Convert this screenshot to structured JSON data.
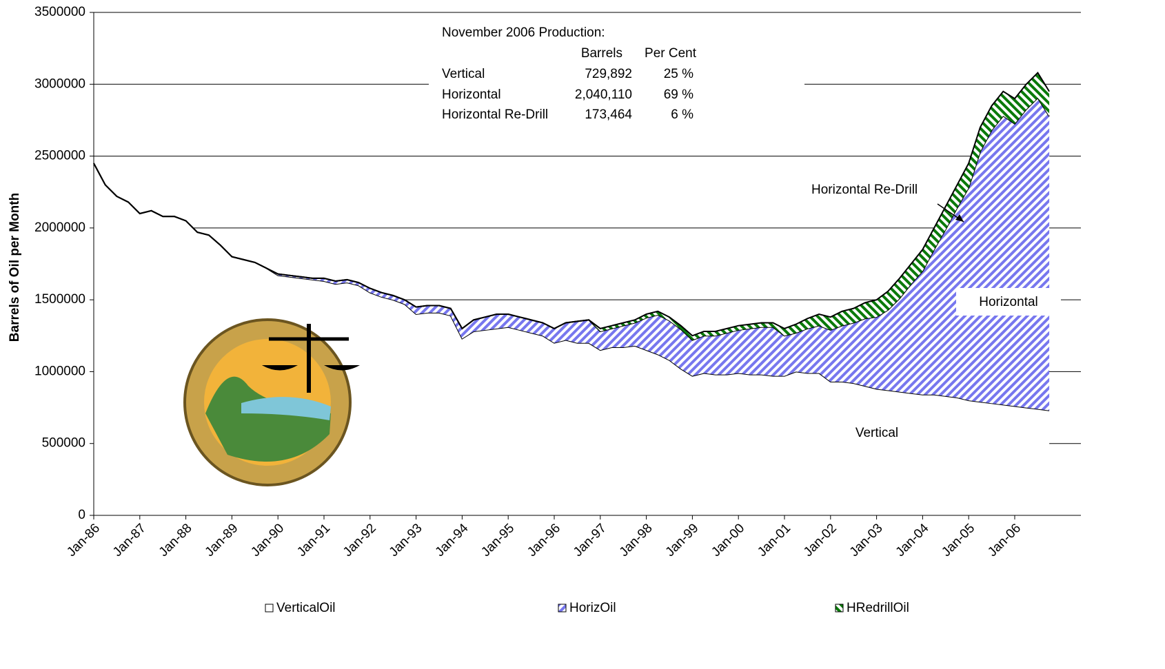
{
  "chart_data": {
    "type": "stacked_area",
    "y_label": "Barrels of Oil per Month",
    "ylim": [
      0,
      3500000
    ],
    "yticks": [
      0,
      500000,
      1000000,
      1500000,
      2000000,
      2500000,
      3000000,
      3500000
    ],
    "grid": true,
    "legend": "bottom",
    "categories": [
      "Jan-86",
      null,
      null,
      null,
      "Jan-87",
      null,
      null,
      null,
      "Jan-88",
      null,
      null,
      null,
      "Jan-89",
      null,
      null,
      null,
      "Jan-90",
      null,
      null,
      null,
      "Jan-91",
      null,
      null,
      null,
      "Jan-92",
      null,
      null,
      null,
      "Jan-93",
      null,
      null,
      null,
      "Jan-94",
      null,
      null,
      null,
      "Jan-95",
      null,
      null,
      null,
      "Jan-96",
      null,
      null,
      null,
      "Jan-97",
      null,
      null,
      null,
      "Jan-98",
      null,
      null,
      null,
      "Jan-99",
      null,
      null,
      null,
      "Jan-00",
      null,
      null,
      null,
      "Jan-01",
      null,
      null,
      null,
      "Jan-02",
      null,
      null,
      null,
      "Jan-03",
      null,
      null,
      null,
      "Jan-04",
      null,
      null,
      null,
      "Jan-05",
      null,
      null,
      null,
      "Jan-06",
      null,
      null,
      null
    ],
    "series": [
      {
        "name": "VerticalOil",
        "color": "#ffffff",
        "values": [
          2450000,
          2300000,
          2220000,
          2180000,
          2100000,
          2120000,
          2080000,
          2080000,
          2050000,
          1970000,
          1950000,
          1880000,
          1800000,
          1780000,
          1760000,
          1720000,
          1670000,
          1660000,
          1650000,
          1640000,
          1630000,
          1610000,
          1620000,
          1600000,
          1550000,
          1520000,
          1500000,
          1470000,
          1400000,
          1410000,
          1410000,
          1390000,
          1230000,
          1280000,
          1290000,
          1300000,
          1310000,
          1290000,
          1270000,
          1250000,
          1200000,
          1220000,
          1200000,
          1200000,
          1150000,
          1170000,
          1170000,
          1180000,
          1150000,
          1120000,
          1080000,
          1020000,
          970000,
          990000,
          980000,
          980000,
          990000,
          980000,
          980000,
          970000,
          970000,
          1000000,
          990000,
          990000,
          930000,
          930000,
          920000,
          900000,
          880000,
          870000,
          860000,
          850000,
          840000,
          840000,
          830000,
          820000,
          800000,
          790000,
          780000,
          770000,
          760000,
          750000,
          740000,
          730000
        ]
      },
      {
        "name": "HorizOil",
        "color": "#6666ff",
        "values": [
          0,
          0,
          0,
          0,
          0,
          0,
          0,
          0,
          0,
          0,
          0,
          0,
          0,
          0,
          0,
          0,
          10000,
          10000,
          10000,
          10000,
          20000,
          20000,
          20000,
          20000,
          30000,
          30000,
          30000,
          30000,
          50000,
          50000,
          50000,
          50000,
          70000,
          80000,
          90000,
          100000,
          90000,
          90000,
          90000,
          90000,
          100000,
          120000,
          150000,
          160000,
          130000,
          130000,
          150000,
          160000,
          225000,
          275000,
          275000,
          275000,
          250000,
          260000,
          270000,
          290000,
          300000,
          320000,
          330000,
          340000,
          280000,
          270000,
          310000,
          330000,
          360000,
          390000,
          420000,
          470000,
          500000,
          560000,
          650000,
          760000,
          860000,
          1010000,
          1160000,
          1320000,
          1480000,
          1740000,
          1900000,
          2010000,
          1965000,
          2075000,
          2165000,
          2047000
        ]
      },
      {
        "name": "HRedrillOil",
        "color": "#008000",
        "values": [
          0,
          0,
          0,
          0,
          0,
          0,
          0,
          0,
          0,
          0,
          0,
          0,
          0,
          0,
          0,
          0,
          0,
          0,
          0,
          0,
          0,
          0,
          0,
          0,
          0,
          0,
          0,
          0,
          0,
          0,
          0,
          0,
          0,
          0,
          0,
          0,
          0,
          0,
          0,
          0,
          0,
          0,
          0,
          0,
          20000,
          20000,
          20000,
          20000,
          25000,
          25000,
          25000,
          25000,
          30000,
          30000,
          30000,
          30000,
          30000,
          30000,
          30000,
          30000,
          50000,
          60000,
          70000,
          80000,
          90000,
          100000,
          100000,
          110000,
          120000,
          130000,
          140000,
          140000,
          150000,
          150000,
          160000,
          160000,
          170000,
          170000,
          170000,
          170000,
          175000,
          175000,
          175000,
          173000
        ]
      }
    ],
    "annotations": {
      "title": "November 2006 Production:",
      "headers": [
        "Barrels",
        "Per Cent"
      ],
      "rows": [
        [
          "Vertical",
          "729,892",
          "25 %"
        ],
        [
          "Horizontal",
          "2,040,110",
          "69 %"
        ],
        [
          "Horizontal Re-Drill",
          "173,464",
          "6 %"
        ]
      ],
      "labels": [
        "Horizontal Re-Drill",
        "Horizontal",
        "Vertical"
      ]
    }
  }
}
